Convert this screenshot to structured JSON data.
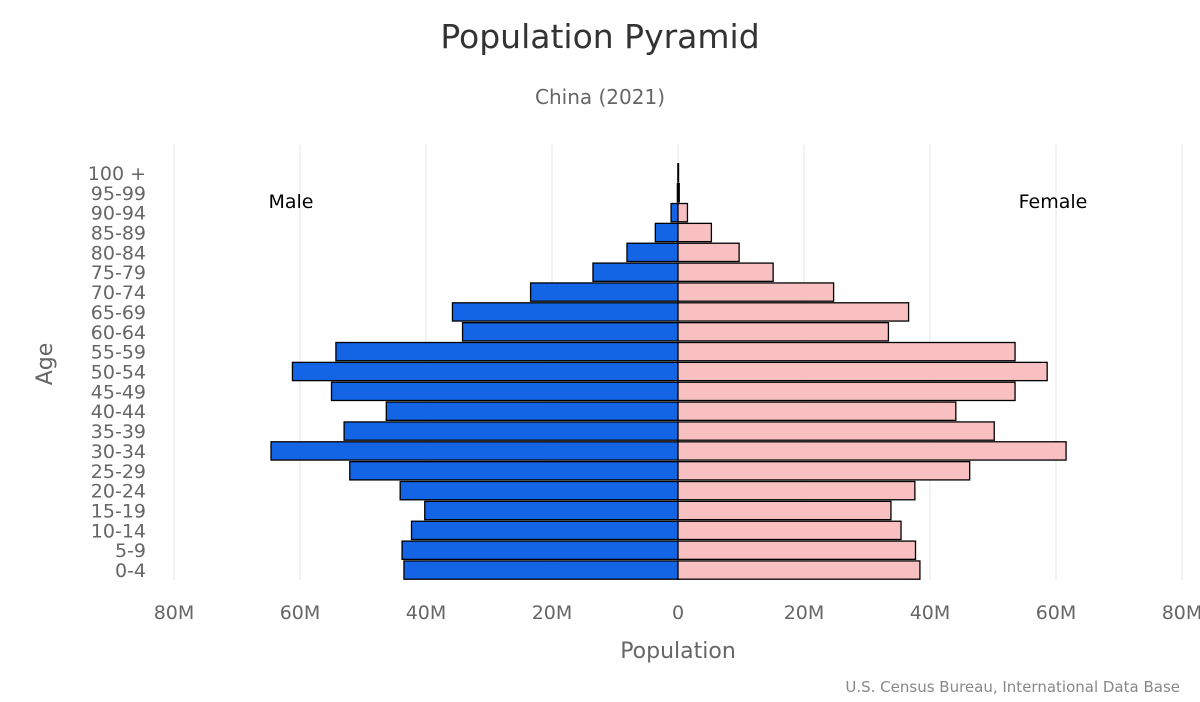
{
  "chart_data": {
    "type": "bar",
    "orientation": "horizontal",
    "title": "Population Pyramid",
    "subtitle": "China (2021)",
    "xlabel": "Population",
    "ylabel": "Age",
    "credits": "U.S. Census Bureau, International Data Base",
    "xlim": [
      -80,
      80
    ],
    "x_unit": "M",
    "x_ticks": [
      -80,
      -60,
      -40,
      -20,
      0,
      20,
      40,
      60,
      80
    ],
    "x_tick_labels": [
      "80M",
      "60M",
      "40M",
      "20M",
      "0",
      "20M",
      "40M",
      "60M",
      "80M"
    ],
    "grid": true,
    "categories": [
      "0-4",
      "5-9",
      "10-14",
      "15-19",
      "20-24",
      "25-29",
      "30-34",
      "35-39",
      "40-44",
      "45-49",
      "50-54",
      "55-59",
      "60-64",
      "65-69",
      "70-74",
      "75-79",
      "80-84",
      "85-89",
      "90-94",
      "95-99",
      "100 +"
    ],
    "series": [
      {
        "name": "Male",
        "color": "#1464e6",
        "values": [
          43.5,
          43.8,
          42.3,
          40.2,
          44.1,
          52.1,
          64.6,
          53.0,
          46.3,
          55.0,
          61.2,
          54.3,
          34.2,
          35.8,
          23.4,
          13.5,
          8.1,
          3.6,
          1.1,
          0.1,
          0.01
        ]
      },
      {
        "name": "Female",
        "color": "#f8c0c0",
        "values": [
          38.4,
          37.7,
          35.4,
          33.8,
          37.6,
          46.3,
          61.6,
          50.2,
          44.1,
          53.5,
          58.6,
          53.5,
          33.4,
          36.6,
          24.7,
          15.1,
          9.7,
          5.3,
          1.5,
          0.2,
          0.01
        ]
      }
    ]
  }
}
